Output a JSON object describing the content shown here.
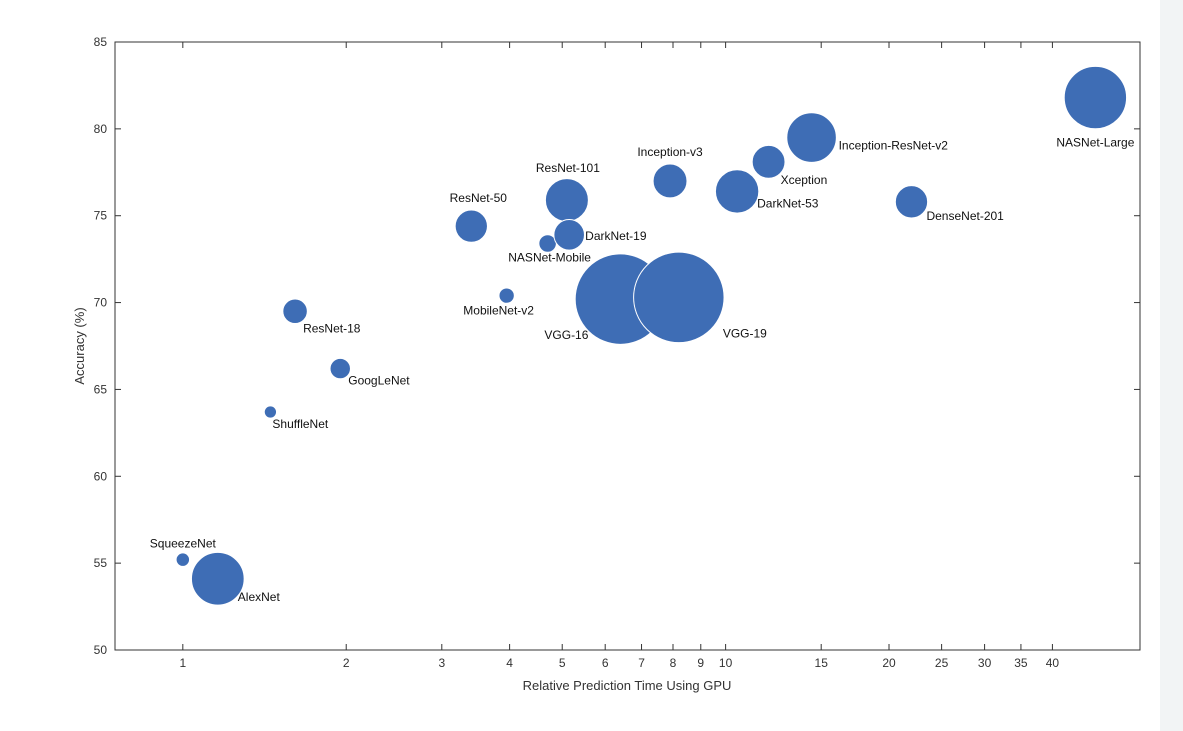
{
  "chart_data": {
    "type": "scatter",
    "subtype": "bubble",
    "title": "",
    "xlabel": "Relative Prediction Time Using GPU",
    "ylabel": "Accuracy (%)",
    "xscale": "log",
    "xlim": [
      0.75,
      58
    ],
    "ylim": [
      50,
      85
    ],
    "xticks": [
      1,
      2,
      3,
      4,
      5,
      6,
      7,
      8,
      9,
      10,
      15,
      20,
      25,
      30,
      35,
      40
    ],
    "yticks": [
      50,
      55,
      60,
      65,
      70,
      75,
      80,
      85
    ],
    "grid": false,
    "legend": "none",
    "color": "#3e6db5",
    "points": [
      {
        "name": "SqueezeNet",
        "x": 1.0,
        "y": 55.2,
        "size": 0.3
      },
      {
        "name": "AlexNet",
        "x": 1.16,
        "y": 54.1,
        "size": 15
      },
      {
        "name": "ShuffleNet",
        "x": 1.45,
        "y": 63.7,
        "size": 0.2
      },
      {
        "name": "ResNet-18",
        "x": 1.61,
        "y": 69.5,
        "size": 2.2
      },
      {
        "name": "GoogLeNet",
        "x": 1.95,
        "y": 66.2,
        "size": 1.3
      },
      {
        "name": "ResNet-50",
        "x": 3.4,
        "y": 74.4,
        "size": 4.6
      },
      {
        "name": "MobileNet-v2",
        "x": 3.95,
        "y": 70.4,
        "size": 0.5
      },
      {
        "name": "NASNet-Mobile",
        "x": 4.7,
        "y": 73.4,
        "size": 0.8
      },
      {
        "name": "ResNet-101",
        "x": 5.1,
        "y": 75.9,
        "size": 9.3
      },
      {
        "name": "DarkNet-19",
        "x": 5.15,
        "y": 73.9,
        "size": 4.0
      },
      {
        "name": "VGG-16",
        "x": 6.4,
        "y": 70.2,
        "size": 50
      },
      {
        "name": "VGG-19",
        "x": 8.2,
        "y": 70.3,
        "size": 50
      },
      {
        "name": "Inception-v3",
        "x": 7.9,
        "y": 77.0,
        "size": 5.2
      },
      {
        "name": "DarkNet-53",
        "x": 10.5,
        "y": 76.4,
        "size": 9.5
      },
      {
        "name": "Xception",
        "x": 12.0,
        "y": 78.1,
        "size": 4.8
      },
      {
        "name": "Inception-ResNet-v2",
        "x": 14.4,
        "y": 79.5,
        "size": 13
      },
      {
        "name": "DenseNet-201",
        "x": 22.0,
        "y": 75.8,
        "size": 4.6
      },
      {
        "name": "NASNet-Large",
        "x": 48.0,
        "y": 81.8,
        "size": 22
      }
    ]
  }
}
